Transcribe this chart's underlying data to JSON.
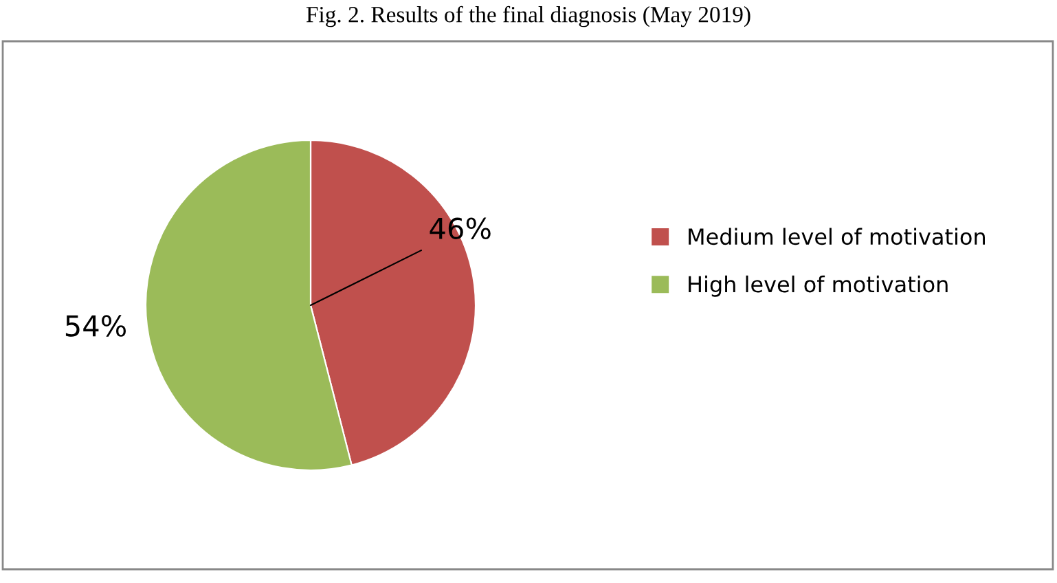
{
  "chart_data": {
    "type": "pie",
    "title": "Fig. 2. Results of the final diagnosis (May 2019)",
    "categories": [
      "Medium level of motivation",
      "High level of motivation"
    ],
    "values": [
      46,
      54
    ],
    "colors": [
      "#c0504d",
      "#9bbb59"
    ],
    "value_labels": [
      "46%",
      "54%"
    ],
    "legend": "right"
  }
}
